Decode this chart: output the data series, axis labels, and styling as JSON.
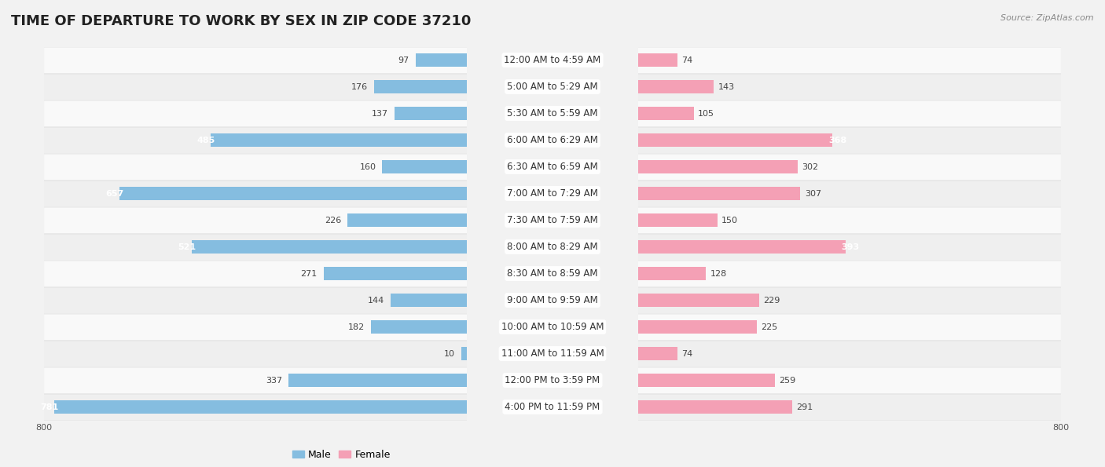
{
  "title": "TIME OF DEPARTURE TO WORK BY SEX IN ZIP CODE 37210",
  "source": "Source: ZipAtlas.com",
  "categories": [
    "12:00 AM to 4:59 AM",
    "5:00 AM to 5:29 AM",
    "5:30 AM to 5:59 AM",
    "6:00 AM to 6:29 AM",
    "6:30 AM to 6:59 AM",
    "7:00 AM to 7:29 AM",
    "7:30 AM to 7:59 AM",
    "8:00 AM to 8:29 AM",
    "8:30 AM to 8:59 AM",
    "9:00 AM to 9:59 AM",
    "10:00 AM to 10:59 AM",
    "11:00 AM to 11:59 AM",
    "12:00 PM to 3:59 PM",
    "4:00 PM to 11:59 PM"
  ],
  "male": [
    97,
    176,
    137,
    485,
    160,
    657,
    226,
    521,
    271,
    144,
    182,
    10,
    337,
    781
  ],
  "female": [
    74,
    143,
    105,
    368,
    302,
    307,
    150,
    393,
    128,
    229,
    225,
    74,
    259,
    291
  ],
  "male_color": "#85bde0",
  "female_color": "#f4a0b5",
  "bg_color": "#f2f2f2",
  "row_bg_even": "#efefef",
  "row_bg_odd": "#f9f9f9",
  "axis_max": 800,
  "title_fontsize": 13,
  "source_fontsize": 8,
  "cat_label_fontsize": 8.5,
  "value_fontsize": 8,
  "bar_height": 0.52,
  "legend_fontsize": 9
}
